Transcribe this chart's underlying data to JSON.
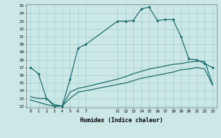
{
  "xlabel": "Humidex (Indice chaleur)",
  "bg_color": "#cce8e6",
  "grid_color": "#9fcece",
  "line_color": "#1a6b6b",
  "x_ticks": [
    0,
    1,
    2,
    3,
    4,
    5,
    6,
    7,
    11,
    12,
    13,
    14,
    15,
    16,
    17,
    18,
    19,
    20,
    21,
    22,
    23
  ],
  "ylim": [
    12,
    25
  ],
  "xlim": [
    -0.5,
    23.5
  ],
  "yticks": [
    12,
    13,
    14,
    15,
    16,
    17,
    18,
    19,
    20,
    21,
    22,
    23,
    24,
    25
  ],
  "line1_x": [
    0,
    1,
    2,
    3,
    4,
    5,
    6,
    7,
    11,
    12,
    13,
    14,
    15,
    16,
    17,
    18,
    19,
    20,
    21,
    22,
    23
  ],
  "line1_y": [
    17.0,
    16.2,
    13.0,
    12.0,
    12.0,
    15.5,
    19.5,
    20.0,
    23.0,
    23.0,
    23.1,
    24.6,
    24.8,
    23.1,
    23.2,
    23.2,
    21.0,
    18.1,
    18.0,
    17.5,
    17.0
  ],
  "line2_x": [
    0,
    1,
    2,
    3,
    4,
    5,
    6,
    7,
    11,
    12,
    13,
    14,
    15,
    16,
    17,
    18,
    19,
    20,
    21,
    22,
    23
  ],
  "line2_y": [
    13.2,
    13.0,
    13.0,
    12.2,
    12.0,
    13.8,
    14.3,
    14.5,
    15.5,
    15.8,
    16.2,
    16.5,
    16.8,
    17.0,
    17.2,
    17.4,
    17.5,
    17.7,
    17.8,
    17.8,
    14.8
  ],
  "line3_x": [
    0,
    1,
    2,
    3,
    4,
    5,
    6,
    7,
    11,
    12,
    13,
    14,
    15,
    16,
    17,
    18,
    19,
    20,
    21,
    22,
    23
  ],
  "line3_y": [
    12.8,
    12.5,
    12.2,
    12.0,
    12.0,
    13.0,
    13.8,
    14.0,
    14.8,
    15.0,
    15.3,
    15.6,
    15.8,
    16.0,
    16.2,
    16.4,
    16.7,
    16.8,
    17.0,
    16.8,
    14.7
  ]
}
